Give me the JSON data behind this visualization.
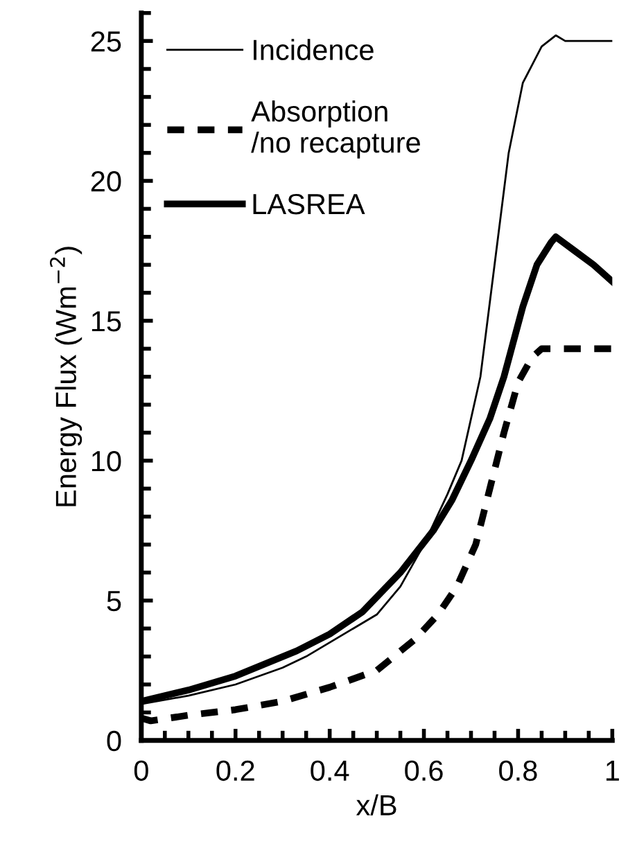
{
  "chart_data": {
    "type": "line",
    "xlabel": "x/B",
    "ylabel": "Energy Flux (Wm$^{−2}$)",
    "xlim": [
      0,
      1
    ],
    "ylim": [
      0,
      26
    ],
    "xticks": [
      0,
      0.2,
      0.4,
      0.6,
      0.8,
      1
    ],
    "yticks": [
      0,
      5,
      10,
      15,
      20,
      25
    ],
    "grid": false,
    "legend": "top left",
    "marker": "none",
    "series": [
      {
        "name": "Incidence",
        "color": "#000000",
        "line_style": "solid",
        "x": [
          0,
          0.1,
          0.2,
          0.3,
          0.35,
          0.45,
          0.5,
          0.55,
          0.6,
          0.65,
          0.68,
          0.7,
          0.72,
          0.75,
          0.78,
          0.81,
          0.85,
          0.88,
          0.9,
          0.95,
          1
        ],
        "values": [
          1.3,
          1.6,
          2.0,
          2.6,
          3.0,
          4.0,
          4.5,
          5.5,
          7.0,
          8.8,
          10,
          11.5,
          13,
          17,
          21,
          23.5,
          24.8,
          25.2,
          25,
          25,
          25
        ]
      },
      {
        "name": "Absorption\n/no recapture",
        "color": "#000000",
        "line_style": "dashed",
        "x": [
          0,
          0.02,
          0.1,
          0.2,
          0.3,
          0.4,
          0.5,
          0.58,
          0.63,
          0.67,
          0.71,
          0.74,
          0.77,
          0.8,
          0.83,
          0.85,
          0.9,
          1
        ],
        "values": [
          0.8,
          0.7,
          0.9,
          1.1,
          1.4,
          1.9,
          2.5,
          3.6,
          4.5,
          5.5,
          7,
          9,
          11,
          12.8,
          13.7,
          14,
          14,
          14
        ]
      },
      {
        "name": "LASREA",
        "color": "#000000",
        "line_style": "solid",
        "x": [
          0,
          0.1,
          0.2,
          0.33,
          0.4,
          0.47,
          0.55,
          0.62,
          0.66,
          0.7,
          0.74,
          0.77,
          0.81,
          0.84,
          0.87,
          0.88,
          0.92,
          0.96,
          1
        ],
        "values": [
          1.4,
          1.8,
          2.3,
          3.2,
          3.8,
          4.6,
          6,
          7.5,
          8.6,
          10,
          11.5,
          13,
          15.5,
          17,
          17.8,
          18,
          17.5,
          17,
          16.4
        ]
      }
    ]
  }
}
